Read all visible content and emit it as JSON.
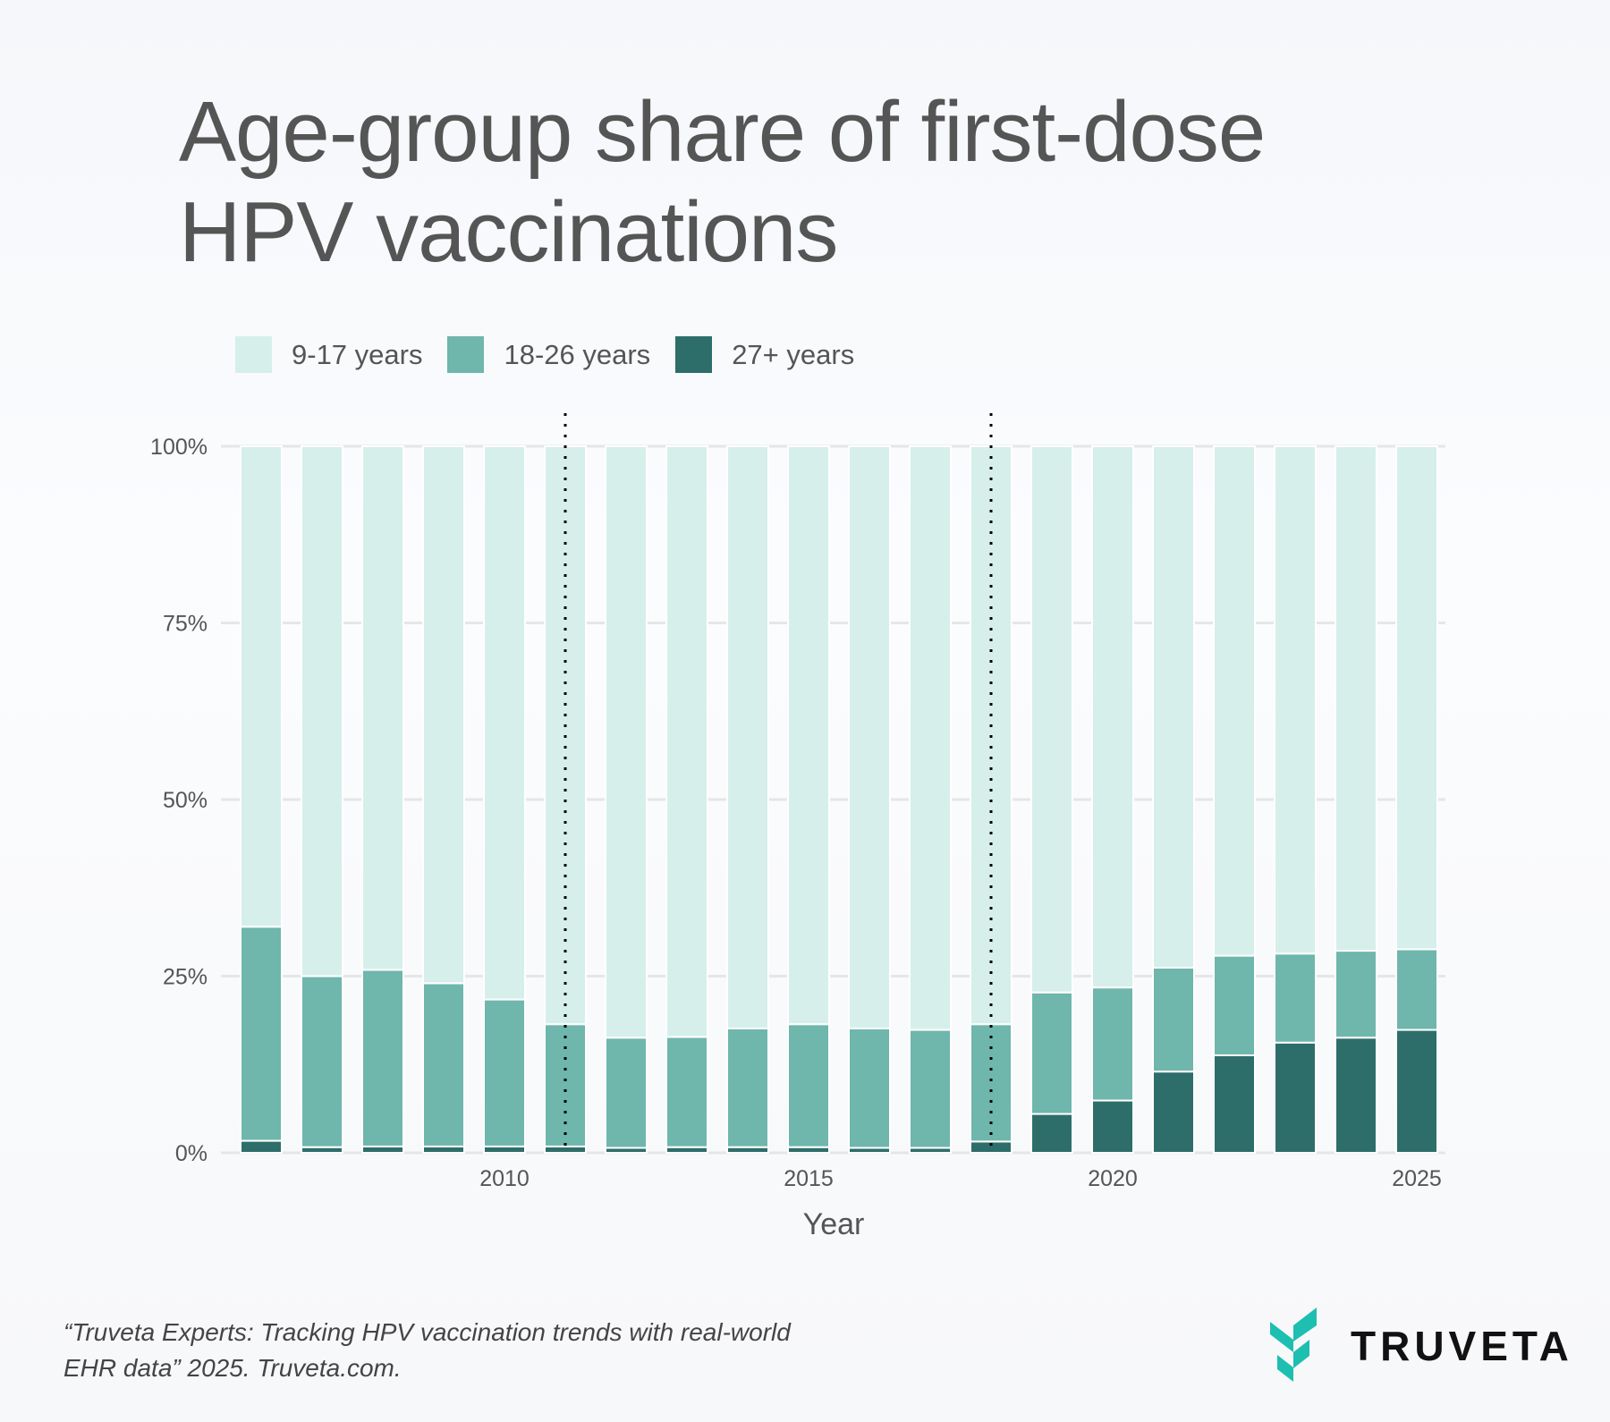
{
  "chart_data": {
    "type": "bar",
    "stacked": true,
    "title": "Age-group share of first-dose HPV vaccinations",
    "xlabel": "Year",
    "ylabel": "",
    "categories": [
      2006,
      2007,
      2008,
      2009,
      2010,
      2011,
      2012,
      2013,
      2014,
      2015,
      2016,
      2017,
      2018,
      2019,
      2020,
      2021,
      2022,
      2023,
      2024,
      2025
    ],
    "series": [
      {
        "name": "27+ years",
        "color": "#2e6e6a",
        "values": [
          1.7,
          0.8,
          0.9,
          0.9,
          0.9,
          0.9,
          0.7,
          0.8,
          0.8,
          0.8,
          0.7,
          0.7,
          1.6,
          5.5,
          7.4,
          11.5,
          13.8,
          15.6,
          16.3,
          17.4
        ]
      },
      {
        "name": "18-26 years",
        "color": "#6fb6ac",
        "values": [
          30.3,
          24.2,
          25.0,
          23.1,
          20.8,
          17.3,
          15.6,
          15.6,
          16.8,
          17.4,
          16.9,
          16.7,
          16.6,
          17.2,
          16.0,
          14.7,
          14.1,
          12.6,
          12.3,
          11.4
        ]
      },
      {
        "name": "9-17 years",
        "color": "#d6efeb",
        "values": [
          68.0,
          75.0,
          74.1,
          76.0,
          78.3,
          81.8,
          83.7,
          83.6,
          82.4,
          81.8,
          82.4,
          82.6,
          81.8,
          77.3,
          76.6,
          73.8,
          72.1,
          71.8,
          71.4,
          71.2
        ]
      }
    ],
    "legend_order": [
      "9-17 years",
      "18-26 years",
      "27+ years"
    ],
    "legend_position": "top-left",
    "ylim": [
      0,
      100
    ],
    "yticks": [
      "0%",
      "25%",
      "50%",
      "75%",
      "100%"
    ],
    "ytick_values": [
      0,
      25,
      50,
      75,
      100
    ],
    "xticks": [
      "2010",
      "2015",
      "2020",
      "2025"
    ],
    "xtick_values": [
      2010,
      2015,
      2020,
      2025
    ],
    "reference_lines": [
      2011,
      2018
    ],
    "grid": "horizontal"
  },
  "title_lines": [
    "Age-group share of first-dose",
    "HPV vaccinations"
  ],
  "footer": {
    "line1": "“Truveta Experts: Tracking HPV vaccination trends with real-world",
    "line2": "EHR data” 2025. Truveta.com."
  },
  "logo": {
    "text": "TRUVETA",
    "color": "#1dbfb0"
  }
}
